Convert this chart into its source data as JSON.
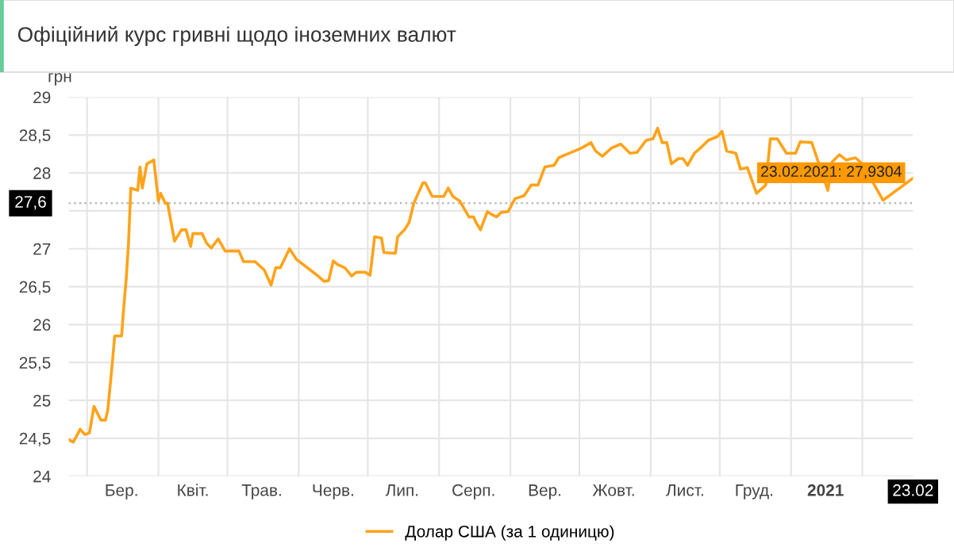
{
  "chart_data": {
    "type": "line",
    "title": "Офіційний курс гривні щодо іноземних валют",
    "ylabel": "грн",
    "x": [
      "2020-02-22",
      "2020-02-24",
      "2020-02-27",
      "2020-02-29",
      "2020-03-02",
      "2020-03-04",
      "2020-03-07",
      "2020-03-09",
      "2020-03-10",
      "2020-03-12",
      "2020-03-13",
      "2020-03-16",
      "2020-03-17",
      "2020-03-18",
      "2020-03-19",
      "2020-03-20",
      "2020-03-23",
      "2020-03-24",
      "2020-03-25",
      "2020-03-27",
      "2020-03-30",
      "2020-04-01",
      "2020-04-02",
      "2020-04-04",
      "2020-04-05",
      "2020-04-08",
      "2020-04-11",
      "2020-04-13",
      "2020-04-15",
      "2020-04-16",
      "2020-04-20",
      "2020-04-22",
      "2020-04-24",
      "2020-04-27",
      "2020-04-30",
      "2020-05-06",
      "2020-05-08",
      "2020-05-13",
      "2020-05-17",
      "2020-05-20",
      "2020-05-22",
      "2020-05-24",
      "2020-05-28",
      "2020-05-31",
      "2020-06-06",
      "2020-06-09",
      "2020-06-12",
      "2020-06-14",
      "2020-06-16",
      "2020-06-18",
      "2020-06-21",
      "2020-06-24",
      "2020-06-26",
      "2020-06-30",
      "2020-07-02",
      "2020-07-04",
      "2020-07-07",
      "2020-07-08",
      "2020-07-13",
      "2020-07-14",
      "2020-07-17",
      "2020-07-19",
      "2020-07-21",
      "2020-07-25",
      "2020-07-26",
      "2020-07-29",
      "2020-08-03",
      "2020-08-05",
      "2020-08-07",
      "2020-08-10",
      "2020-08-14",
      "2020-08-16",
      "2020-08-17",
      "2020-08-19",
      "2020-08-22",
      "2020-08-24",
      "2020-08-26",
      "2020-08-28",
      "2020-08-31",
      "2020-09-03",
      "2020-09-07",
      "2020-09-10",
      "2020-09-13",
      "2020-09-16",
      "2020-09-20",
      "2020-09-22",
      "2020-09-25",
      "2020-09-29",
      "2020-10-02",
      "2020-10-06",
      "2020-10-08",
      "2020-10-11",
      "2020-10-15",
      "2020-10-19",
      "2020-10-23",
      "2020-10-26",
      "2020-10-30",
      "2020-11-02",
      "2020-11-04",
      "2020-11-06",
      "2020-11-08",
      "2020-11-10",
      "2020-11-13",
      "2020-11-15",
      "2020-11-17",
      "2020-11-20",
      "2020-11-23",
      "2020-11-26",
      "2020-11-30",
      "2020-12-02",
      "2020-12-04",
      "2020-12-08",
      "2020-12-10",
      "2020-12-13",
      "2020-12-17",
      "2020-12-21",
      "2020-12-23",
      "2020-12-26",
      "2020-12-30",
      "2021-01-03",
      "2021-01-05",
      "2021-01-10",
      "2021-01-13",
      "2021-01-17",
      "2021-01-19",
      "2021-01-22",
      "2021-01-25",
      "2021-01-29",
      "2021-02-01",
      "2021-02-05",
      "2021-02-08",
      "2021-02-10",
      "2021-02-11",
      "2021-02-19",
      "2021-02-23"
    ],
    "series": [
      {
        "name": "Долар США (за 1 одиницю)",
        "color": "#ffa31a",
        "values": [
          24.48,
          24.45,
          24.62,
          24.55,
          24.57,
          24.92,
          24.74,
          24.74,
          24.87,
          25.5,
          25.85,
          25.85,
          26.25,
          26.6,
          27.07,
          27.8,
          27.77,
          28.08,
          27.8,
          28.12,
          28.17,
          27.63,
          27.73,
          27.6,
          27.6,
          27.1,
          27.25,
          27.25,
          27.03,
          27.2,
          27.2,
          27.07,
          27.01,
          27.13,
          26.97,
          26.97,
          26.83,
          26.83,
          26.72,
          26.52,
          26.75,
          26.75,
          27.0,
          26.86,
          26.72,
          26.65,
          26.57,
          26.58,
          26.84,
          26.79,
          26.75,
          26.64,
          26.69,
          26.69,
          26.65,
          27.16,
          27.14,
          26.95,
          26.94,
          27.16,
          27.25,
          27.35,
          27.6,
          27.87,
          27.87,
          27.69,
          27.69,
          27.8,
          27.69,
          27.63,
          27.42,
          27.42,
          27.35,
          27.25,
          27.49,
          27.45,
          27.42,
          27.48,
          27.49,
          27.66,
          27.7,
          27.84,
          27.84,
          28.08,
          28.1,
          28.2,
          28.24,
          28.29,
          28.33,
          28.4,
          28.29,
          28.22,
          28.33,
          28.38,
          28.26,
          28.27,
          28.43,
          28.45,
          28.59,
          28.4,
          28.4,
          28.12,
          28.19,
          28.19,
          28.1,
          28.26,
          28.34,
          28.43,
          28.48,
          28.55,
          28.29,
          28.26,
          28.05,
          28.07,
          27.73,
          27.84,
          28.45,
          28.45,
          28.26,
          28.26,
          28.41,
          28.4,
          null,
          27.77,
          28.15,
          28.24,
          28.17,
          28.2,
          28.12,
          null,
          null,
          27.64,
          null,
          null,
          27.9304
        ]
      }
    ],
    "xlim": [
      "2020-02-22",
      "2021-02-23"
    ],
    "xticks": [
      {
        "value": "2020-03-01",
        "label": null
      },
      {
        "value": "2020-03-16",
        "label": "Бер."
      },
      {
        "value": "2020-04-01",
        "label": null
      },
      {
        "value": "2020-04-16",
        "label": "Квіт."
      },
      {
        "value": "2020-05-01",
        "label": null
      },
      {
        "value": "2020-05-16",
        "label": "Трав."
      },
      {
        "value": "2020-06-01",
        "label": null
      },
      {
        "value": "2020-06-16",
        "label": "Черв."
      },
      {
        "value": "2020-07-01",
        "label": null
      },
      {
        "value": "2020-07-16",
        "label": "Лип."
      },
      {
        "value": "2020-08-01",
        "label": null
      },
      {
        "value": "2020-08-16",
        "label": "Серп."
      },
      {
        "value": "2020-09-01",
        "label": null
      },
      {
        "value": "2020-09-16",
        "label": "Вер."
      },
      {
        "value": "2020-10-01",
        "label": null
      },
      {
        "value": "2020-10-16",
        "label": "Жовт."
      },
      {
        "value": "2020-11-01",
        "label": null
      },
      {
        "value": "2020-11-16",
        "label": "Лист."
      },
      {
        "value": "2020-12-01",
        "label": null
      },
      {
        "value": "2020-12-16",
        "label": "Груд."
      },
      {
        "value": "2021-01-01",
        "label": null
      },
      {
        "value": "2021-01-16",
        "label": "2021"
      },
      {
        "value": "2021-02-01",
        "label": null
      },
      {
        "value": "2021-02-23",
        "label": "23.02"
      }
    ],
    "ylim": [
      24,
      29
    ],
    "yticks": [
      24,
      {
        "value": 24.5,
        "label": "24,5"
      },
      25,
      {
        "value": 25.5,
        "label": "25,5"
      },
      26,
      {
        "value": 26.5,
        "label": "26,5"
      },
      27,
      {
        "value": 27.5,
        "label": null
      },
      28,
      {
        "value": 28.5,
        "label": "28,5"
      },
      29
    ],
    "ref_lines": [
      {
        "axis": "y",
        "value": 27.6,
        "label": "27,6",
        "color": "#bbbbbb",
        "line_style": "dotted"
      }
    ],
    "annotations": [
      {
        "text": "23.02.2021: 27,9304",
        "x": "2021-02-23",
        "y": 27.9304
      }
    ],
    "grid": true,
    "legend": "bottom",
    "marker": "none",
    "line_style": "solid"
  }
}
